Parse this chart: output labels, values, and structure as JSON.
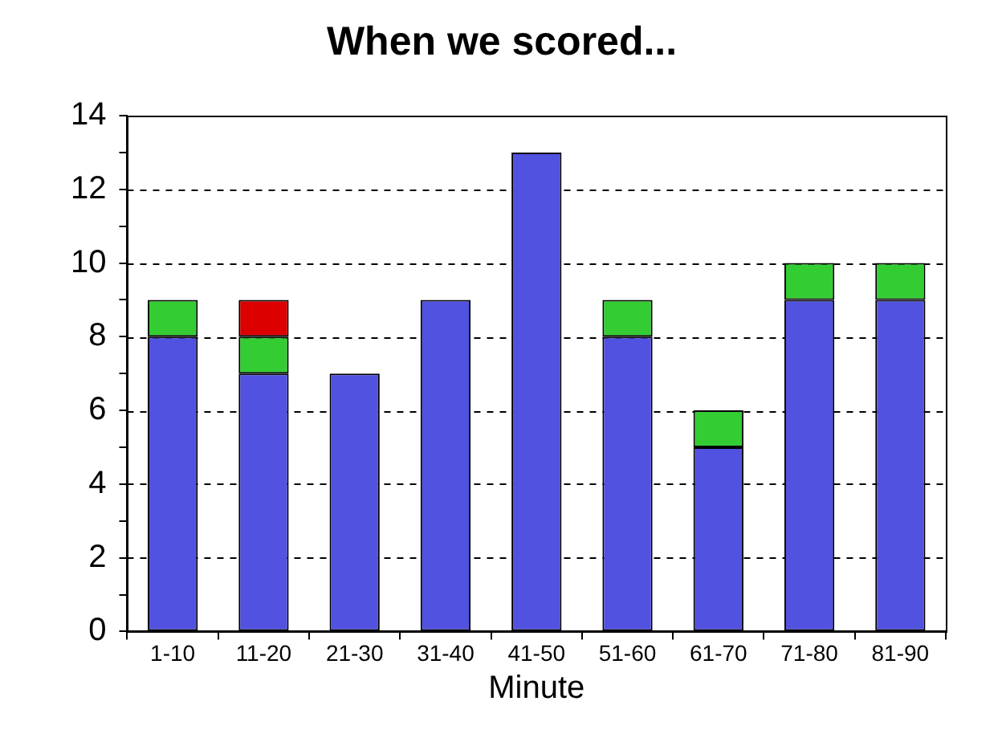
{
  "chart_data": {
    "type": "bar",
    "title": "When we scored...",
    "xlabel": "Minute",
    "categories": [
      "1-10",
      "11-20",
      "21-30",
      "31-40",
      "41-50",
      "51-60",
      "61-70",
      "71-80",
      "81-90"
    ],
    "stacked": true,
    "series": [
      {
        "color": "#5252e0",
        "values": [
          8,
          7,
          7,
          9,
          13,
          8,
          5,
          9,
          9
        ]
      },
      {
        "color": "#33cc33",
        "values": [
          1,
          1,
          null,
          null,
          null,
          1,
          1,
          1,
          1
        ]
      },
      {
        "color": "#dd0000",
        "values": [
          null,
          1,
          null,
          null,
          null,
          null,
          null,
          null,
          null
        ]
      }
    ],
    "ylim": [
      0,
      14
    ],
    "yticks": [
      0,
      {
        "value": 1,
        "label": null
      },
      2,
      {
        "value": 3,
        "label": null
      },
      4,
      {
        "value": 5,
        "label": null
      },
      6,
      {
        "value": 7,
        "label": null
      },
      8,
      {
        "value": 9,
        "label": null
      },
      10,
      {
        "value": 11,
        "label": null
      },
      12,
      {
        "value": 13,
        "label": null
      },
      14
    ],
    "grid": "y",
    "legend": false
  }
}
